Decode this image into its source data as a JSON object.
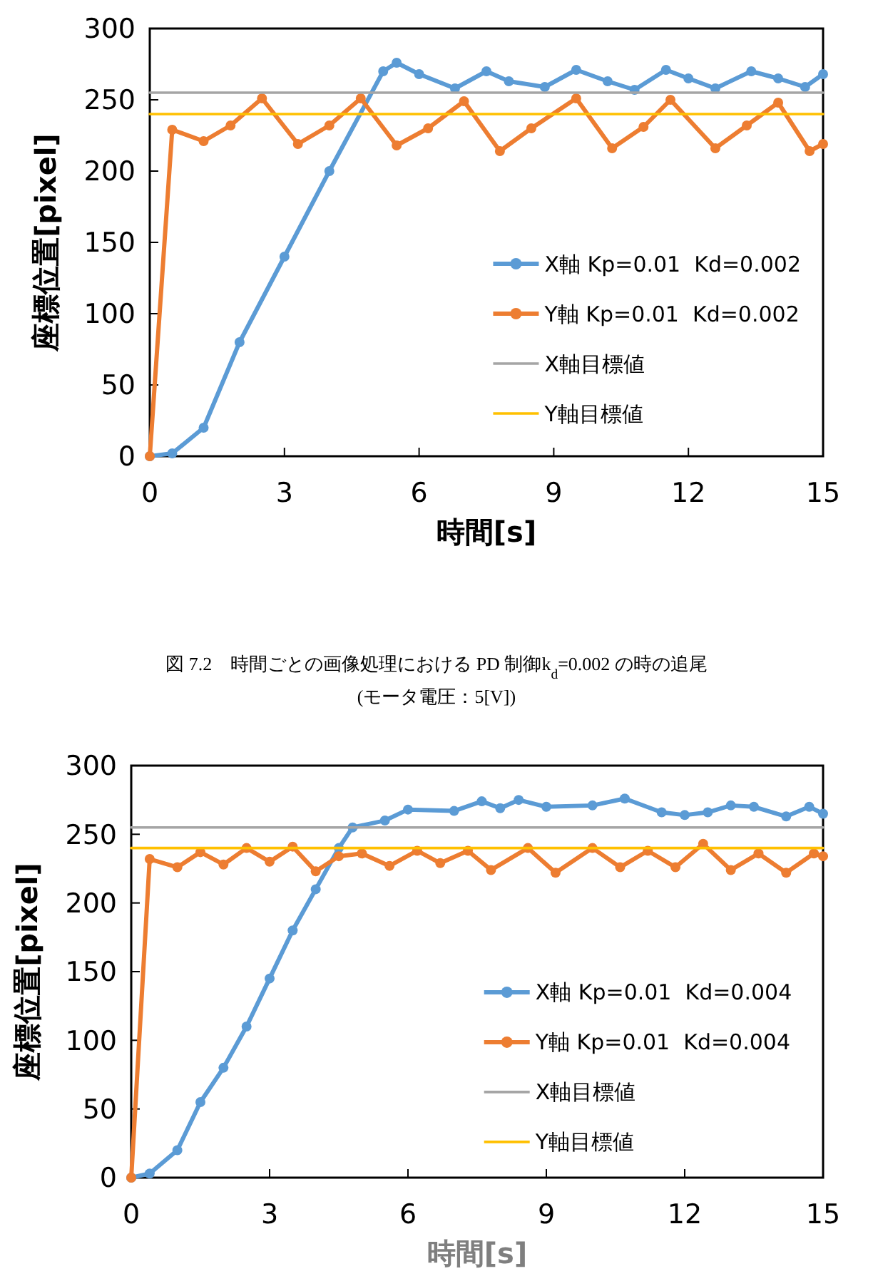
{
  "chart_data": [
    {
      "type": "line",
      "xlabel": "時間[s]",
      "ylabel": "座標位置[pixel]",
      "xlim": [
        0,
        15
      ],
      "xticks": [
        0,
        3,
        6,
        9,
        12,
        15
      ],
      "ylim": [
        0,
        300
      ],
      "yticks": [
        0,
        50,
        100,
        150,
        200,
        250,
        300
      ],
      "grid": false,
      "legend": "right",
      "annotations": [
        "図 7.2　時間ごとの画像処理における PD 制御k$_{d}$=0.002 の時の追尾",
        "(モータ電圧：5[V])"
      ],
      "series": [
        {
          "name": "X軸 Kp=0.01  Kd=0.002",
          "color": "#5b9bd5",
          "marker": "circle",
          "x": [
            0,
            0.5,
            1.2,
            2,
            3,
            4,
            5.2,
            5.5,
            6,
            6.8,
            7.5,
            8,
            8.8,
            9.5,
            10.2,
            10.8,
            11.5,
            12,
            12.6,
            13.4,
            14,
            14.6,
            15
          ],
          "values": [
            0,
            2,
            20,
            80,
            140,
            200,
            270,
            276,
            268,
            258,
            270,
            263,
            259,
            271,
            263,
            257,
            271,
            265,
            258,
            270,
            265,
            259,
            268
          ]
        },
        {
          "name": "Y軸 Kp=0.01  Kd=0.002",
          "color": "#ed7d31",
          "marker": "circle",
          "x": [
            0,
            0.5,
            1.2,
            1.8,
            2.5,
            3.3,
            4,
            4.7,
            5.5,
            6.2,
            7,
            7.8,
            8.5,
            9.5,
            10.3,
            11,
            11.6,
            12.6,
            13.3,
            14,
            14.7,
            15
          ],
          "values": [
            0,
            229,
            221,
            232,
            251,
            219,
            232,
            251,
            218,
            230,
            249,
            214,
            230,
            251,
            216,
            231,
            250,
            216,
            232,
            248,
            214,
            219
          ]
        },
        {
          "name": "X軸目標値",
          "color": "#a5a5a5",
          "marker": "none",
          "x": [
            0,
            15
          ],
          "values": [
            255,
            255
          ]
        },
        {
          "name": "Y軸目標値",
          "color": "#ffc000",
          "marker": "none",
          "x": [
            0,
            15
          ],
          "values": [
            240,
            240
          ]
        }
      ]
    },
    {
      "type": "line",
      "xlabel": "時間[s]",
      "ylabel": "座標位置[pixel]",
      "xlim": [
        0,
        15
      ],
      "xticks": [
        0,
        3,
        6,
        9,
        12,
        15
      ],
      "ylim": [
        0,
        300
      ],
      "yticks": [
        0,
        50,
        100,
        150,
        200,
        250,
        300
      ],
      "grid": false,
      "legend": "right",
      "series": [
        {
          "name": "X軸 Kp=0.01  Kd=0.004",
          "color": "#5b9bd5",
          "marker": "circle",
          "x": [
            0,
            0.4,
            1,
            1.5,
            2,
            2.5,
            3,
            3.5,
            4,
            4.5,
            4.8,
            5.5,
            6,
            7,
            7.6,
            8,
            8.4,
            9,
            10,
            10.7,
            11.5,
            12,
            12.5,
            13,
            13.5,
            14.2,
            14.7,
            15
          ],
          "values": [
            0,
            3,
            20,
            55,
            80,
            110,
            145,
            180,
            210,
            240,
            255,
            260,
            268,
            267,
            274,
            269,
            275,
            270,
            271,
            276,
            266,
            264,
            266,
            271,
            270,
            263,
            270,
            265
          ]
        },
        {
          "name": "Y軸 Kp=0.01  Kd=0.004",
          "color": "#ed7d31",
          "marker": "circle",
          "x": [
            0,
            0.4,
            1,
            1.5,
            2,
            2.5,
            3,
            3.5,
            4,
            4.5,
            5,
            5.6,
            6.2,
            6.7,
            7.3,
            7.8,
            8.6,
            9.2,
            10,
            10.6,
            11.2,
            11.8,
            12.4,
            13,
            13.6,
            14.2,
            14.8,
            15
          ],
          "values": [
            0,
            232,
            226,
            237,
            228,
            240,
            230,
            241,
            223,
            234,
            236,
            227,
            238,
            229,
            238,
            224,
            240,
            222,
            240,
            226,
            238,
            226,
            243,
            224,
            236,
            222,
            236,
            234
          ]
        },
        {
          "name": "X軸目標値",
          "color": "#a5a5a5",
          "marker": "none",
          "x": [
            0,
            15
          ],
          "values": [
            255,
            255
          ]
        },
        {
          "name": "Y軸目標値",
          "color": "#ffc000",
          "marker": "none",
          "x": [
            0,
            15
          ],
          "values": [
            240,
            240
          ]
        }
      ]
    }
  ]
}
